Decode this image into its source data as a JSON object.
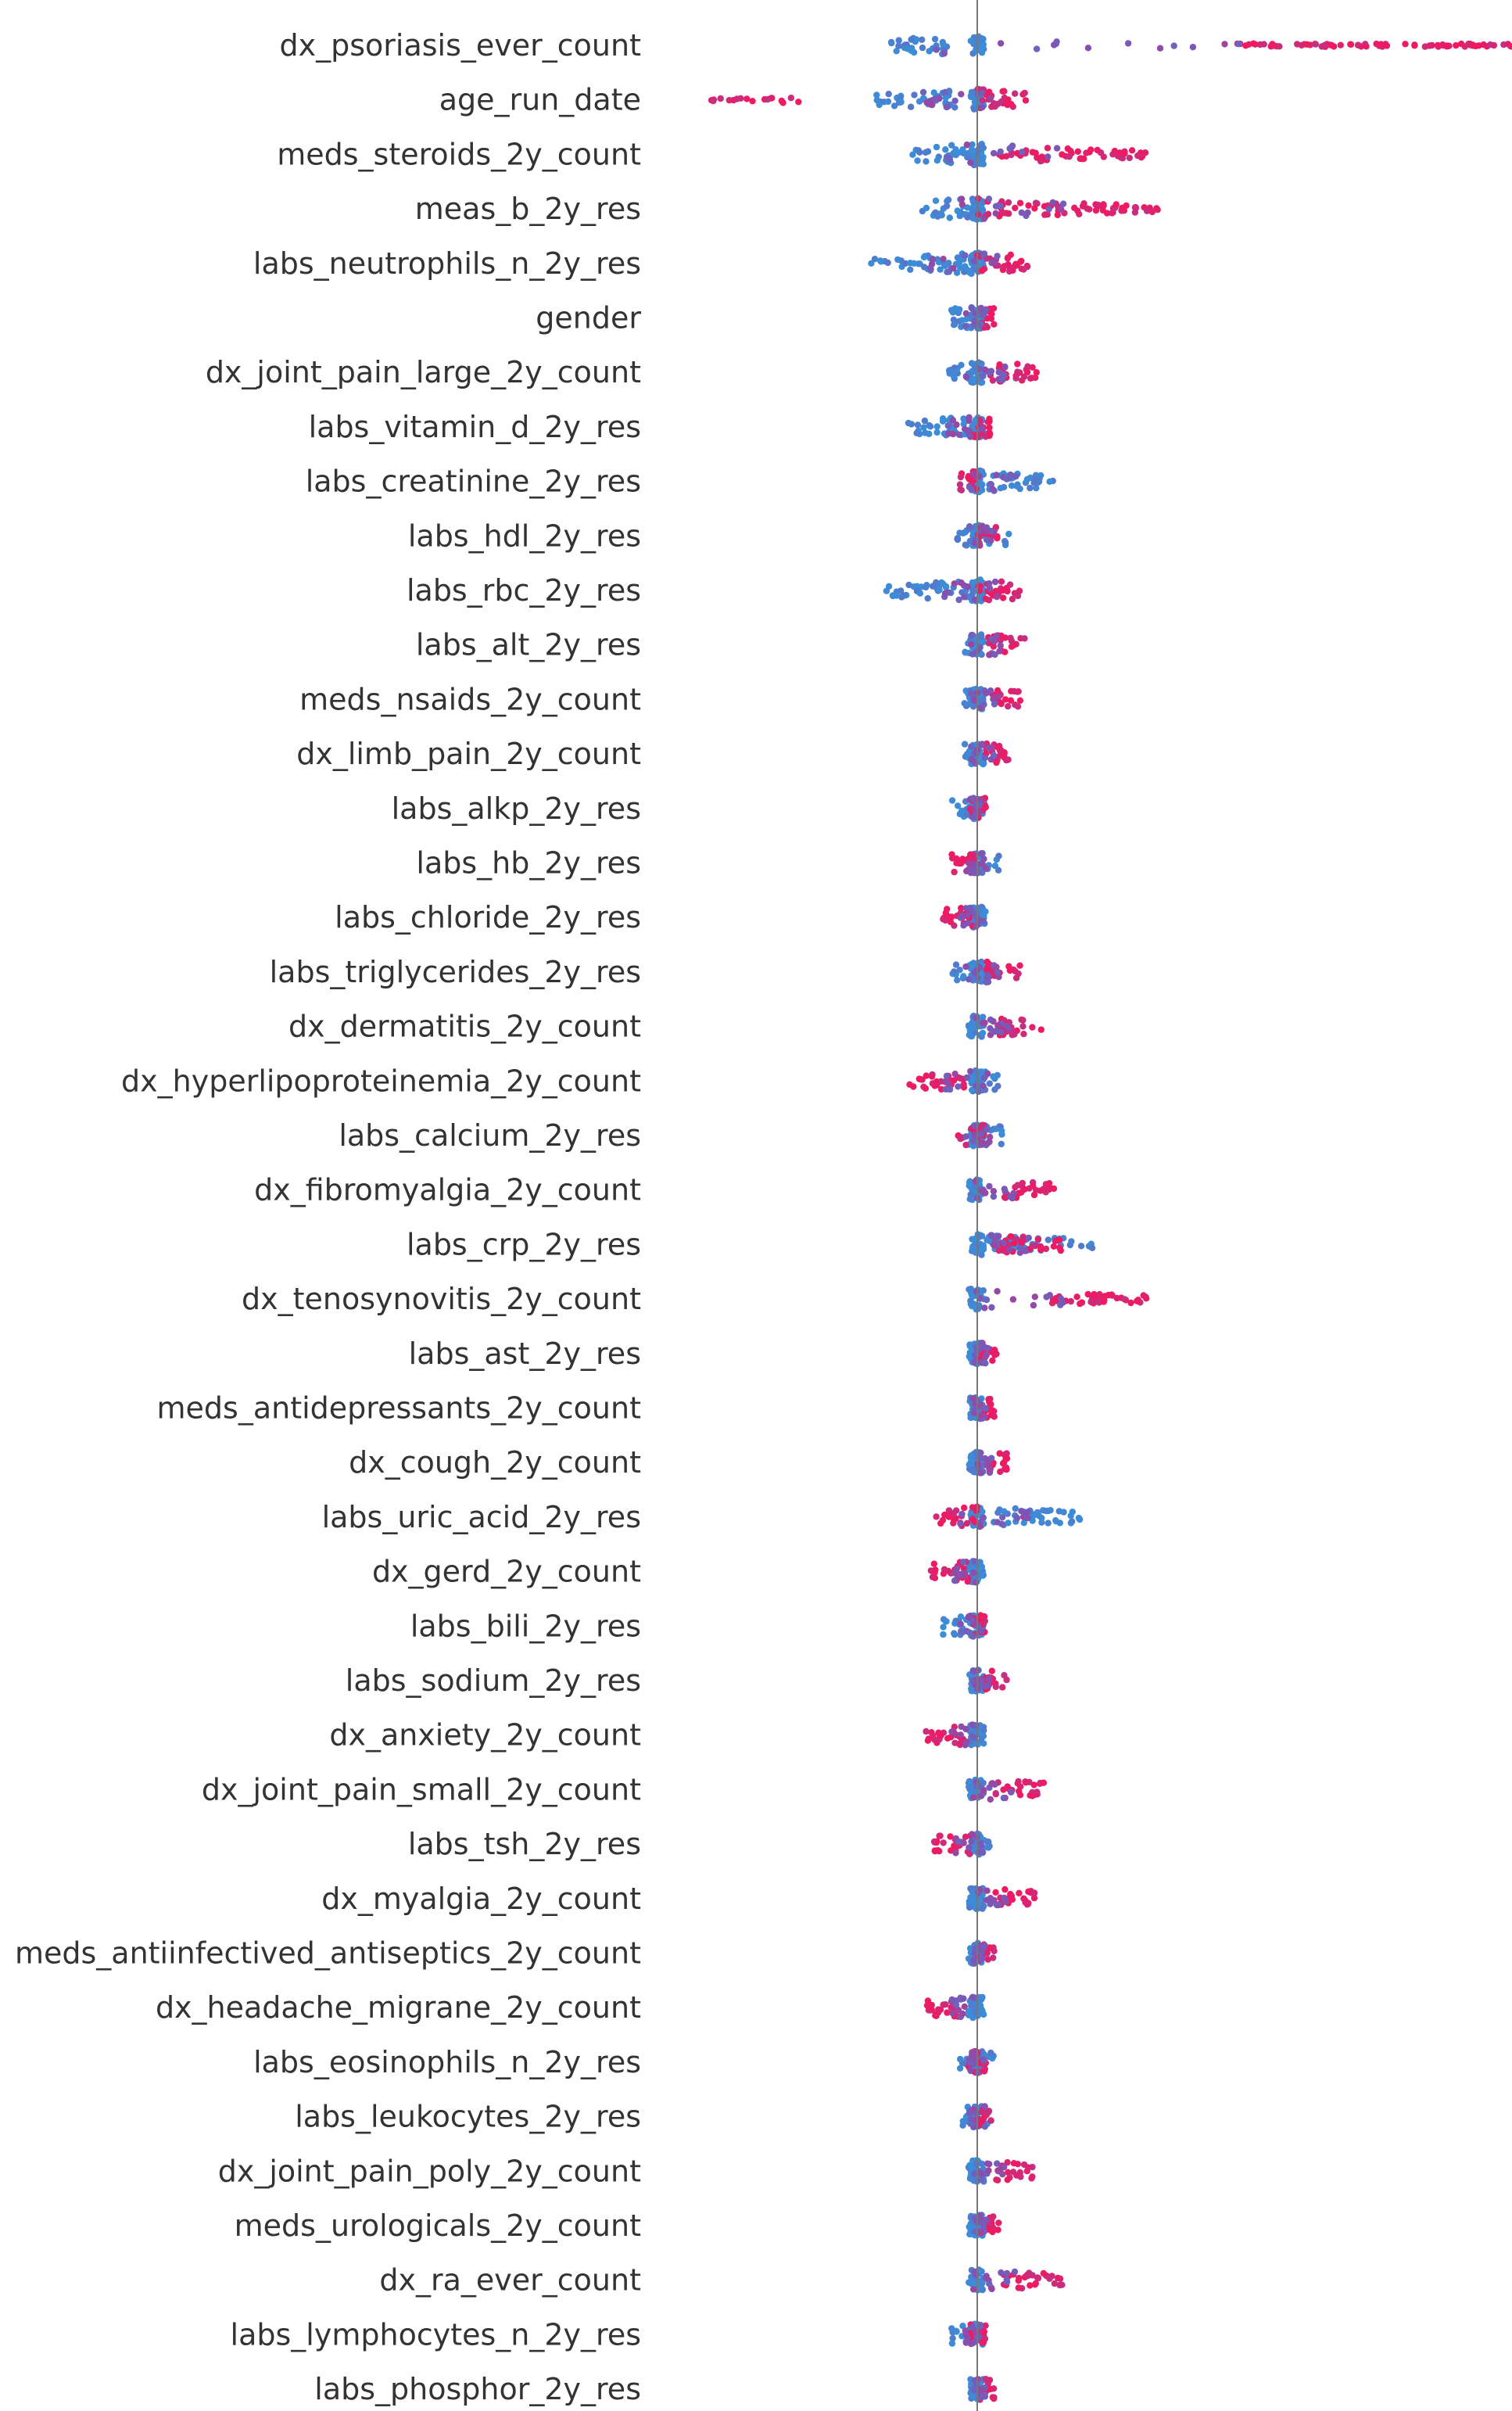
{
  "chart_data": {
    "type": "beeswarm",
    "title": "",
    "xlabel": "",
    "ylabel": "",
    "xlim": [
      -0.6,
      1.3
    ],
    "baseline": 0,
    "grid": false,
    "colors": {
      "low": "#3c8dd8",
      "mid": "#7e55b6",
      "high": "#ee1a62",
      "na": "#888888"
    },
    "features": [
      {
        "name": "dx_psoriasis_ever_count",
        "low_range": [
          -0.2,
          -0.05
        ],
        "high_range": [
          0.6,
          1.3
        ],
        "extra": []
      },
      {
        "name": "age_run_date",
        "low_range": [
          -0.25,
          -0.05
        ],
        "high_range": [
          0.0,
          0.12
        ],
        "extra": [
          {
            "range": [
              -0.62,
              -0.4
            ],
            "tone": "high"
          }
        ]
      },
      {
        "name": "meds_steroids_2y_count",
        "low_range": [
          -0.15,
          0.0
        ],
        "high_range": [
          0.05,
          0.4
        ],
        "extra": []
      },
      {
        "name": "meas_b_2y_res",
        "low_range": [
          -0.13,
          0.0
        ],
        "high_range": [
          0.0,
          0.42
        ],
        "extra": []
      },
      {
        "name": "labs_neutrophils_n_2y_res",
        "low_range": [
          -0.25,
          0.0
        ],
        "high_range": [
          0.0,
          0.13
        ],
        "extra": []
      },
      {
        "name": "gender",
        "low_range": [
          -0.06,
          -0.01
        ],
        "high_range": [
          0.01,
          0.04
        ],
        "extra": []
      },
      {
        "name": "dx_joint_pain_large_2y_count",
        "low_range": [
          -0.07,
          0.0
        ],
        "high_range": [
          0.02,
          0.14
        ],
        "extra": []
      },
      {
        "name": "labs_vitamin_d_2y_res",
        "low_range": [
          -0.16,
          -0.02
        ],
        "high_range": [
          -0.02,
          0.03
        ],
        "extra": []
      },
      {
        "name": "labs_creatinine_2y_res",
        "low_range": [
          0.0,
          0.18
        ],
        "high_range": [
          -0.04,
          0.0
        ],
        "extra": []
      },
      {
        "name": "labs_hdl_2y_res",
        "low_range": [
          -0.05,
          0.08
        ],
        "high_range": [
          0.0,
          0.05
        ],
        "extra": []
      },
      {
        "name": "labs_rbc_2y_res",
        "low_range": [
          -0.22,
          -0.02
        ],
        "high_range": [
          0.0,
          0.1
        ],
        "extra": []
      },
      {
        "name": "labs_alt_2y_res",
        "low_range": [
          -0.03,
          0.01
        ],
        "high_range": [
          0.02,
          0.11
        ],
        "extra": []
      },
      {
        "name": "meds_nsaids_2y_count",
        "low_range": [
          -0.03,
          0.0
        ],
        "high_range": [
          0.03,
          0.1
        ],
        "extra": []
      },
      {
        "name": "dx_limb_pain_2y_count",
        "low_range": [
          -0.03,
          0.0
        ],
        "high_range": [
          0.02,
          0.08
        ],
        "extra": []
      },
      {
        "name": "labs_alkp_2y_res",
        "low_range": [
          -0.06,
          0.02
        ],
        "high_range": [
          -0.02,
          0.02
        ],
        "extra": []
      },
      {
        "name": "labs_hb_2y_res",
        "low_range": [
          -0.02,
          0.05
        ],
        "high_range": [
          -0.06,
          0.0
        ],
        "extra": []
      },
      {
        "name": "labs_chloride_2y_res",
        "low_range": [
          -0.02,
          0.03
        ],
        "high_range": [
          -0.08,
          -0.01
        ],
        "extra": []
      },
      {
        "name": "labs_triglycerides_2y_res",
        "low_range": [
          -0.06,
          0.02
        ],
        "high_range": [
          0.02,
          0.1
        ],
        "extra": []
      },
      {
        "name": "dx_dermatitis_2y_count",
        "low_range": [
          -0.02,
          0.0
        ],
        "high_range": [
          0.05,
          0.15
        ],
        "extra": []
      },
      {
        "name": "dx_hyperlipoproteinemia_2y_count",
        "low_range": [
          -0.02,
          0.05
        ],
        "high_range": [
          -0.16,
          -0.02
        ],
        "extra": []
      },
      {
        "name": "labs_calcium_2y_res",
        "low_range": [
          -0.02,
          0.06
        ],
        "high_range": [
          -0.06,
          0.02
        ],
        "extra": []
      },
      {
        "name": "dx_fibromyalgia_2y_count",
        "low_range": [
          -0.02,
          0.0
        ],
        "high_range": [
          0.06,
          0.18
        ],
        "extra": []
      },
      {
        "name": "labs_crp_2y_res",
        "low_range": [
          0.02,
          0.28
        ],
        "high_range": [
          0.05,
          0.2
        ],
        "extra": []
      },
      {
        "name": "dx_tenosynovitis_2y_count",
        "low_range": [
          -0.02,
          0.0
        ],
        "high_range": [
          0.17,
          0.4
        ],
        "extra": []
      },
      {
        "name": "labs_ast_2y_res",
        "low_range": [
          -0.02,
          0.0
        ],
        "high_range": [
          0.0,
          0.05
        ],
        "extra": []
      },
      {
        "name": "meds_antidepressants_2y_count",
        "low_range": [
          -0.02,
          0.0
        ],
        "high_range": [
          0.01,
          0.04
        ],
        "extra": []
      },
      {
        "name": "dx_cough_2y_count",
        "low_range": [
          -0.02,
          0.0
        ],
        "high_range": [
          0.02,
          0.07
        ],
        "extra": []
      },
      {
        "name": "labs_uric_acid_2y_res",
        "low_range": [
          0.03,
          0.24
        ],
        "high_range": [
          -0.1,
          0.0
        ],
        "extra": []
      },
      {
        "name": "dx_gerd_2y_count",
        "low_range": [
          -0.02,
          0.0
        ],
        "high_range": [
          -0.11,
          -0.02
        ],
        "extra": []
      },
      {
        "name": "labs_bili_2y_res",
        "low_range": [
          -0.08,
          0.0
        ],
        "high_range": [
          -0.01,
          0.02
        ],
        "extra": []
      },
      {
        "name": "labs_sodium_2y_res",
        "low_range": [
          -0.02,
          0.0
        ],
        "high_range": [
          0.01,
          0.07
        ],
        "extra": []
      },
      {
        "name": "dx_anxiety_2y_count",
        "low_range": [
          -0.02,
          0.0
        ],
        "high_range": [
          -0.12,
          -0.02
        ],
        "extra": []
      },
      {
        "name": "dx_joint_pain_small_2y_count",
        "low_range": [
          -0.02,
          0.0
        ],
        "high_range": [
          0.04,
          0.16
        ],
        "extra": []
      },
      {
        "name": "labs_tsh_2y_res",
        "low_range": [
          -0.02,
          0.03
        ],
        "high_range": [
          -0.1,
          -0.01
        ],
        "extra": []
      },
      {
        "name": "dx_myalgia_2y_count",
        "low_range": [
          -0.02,
          0.0
        ],
        "high_range": [
          0.03,
          0.14
        ],
        "extra": []
      },
      {
        "name": "meds_antiinfectived_antiseptics_2y_count",
        "low_range": [
          -0.02,
          0.01
        ],
        "high_range": [
          0.0,
          0.04
        ],
        "extra": []
      },
      {
        "name": "dx_headache_migrane_2y_count",
        "low_range": [
          -0.02,
          0.0
        ],
        "high_range": [
          -0.12,
          -0.02
        ],
        "extra": []
      },
      {
        "name": "labs_eosinophils_n_2y_res",
        "low_range": [
          -0.04,
          0.04
        ],
        "high_range": [
          -0.02,
          0.02
        ],
        "extra": []
      },
      {
        "name": "labs_leukocytes_2y_res",
        "low_range": [
          -0.04,
          0.03
        ],
        "high_range": [
          0.0,
          0.04
        ],
        "extra": []
      },
      {
        "name": "dx_joint_pain_poly_2y_count",
        "low_range": [
          -0.02,
          0.0
        ],
        "high_range": [
          0.04,
          0.13
        ],
        "extra": []
      },
      {
        "name": "meds_urologicals_2y_count",
        "low_range": [
          -0.02,
          0.0
        ],
        "high_range": [
          0.01,
          0.05
        ],
        "extra": []
      },
      {
        "name": "dx_ra_ever_count",
        "low_range": [
          -0.02,
          0.0
        ],
        "high_range": [
          0.06,
          0.2
        ],
        "extra": []
      },
      {
        "name": "labs_lymphocytes_n_2y_res",
        "low_range": [
          -0.06,
          0.0
        ],
        "high_range": [
          -0.02,
          0.02
        ],
        "extra": []
      },
      {
        "name": "labs_phosphor_2y_res",
        "low_range": [
          -0.02,
          0.01
        ],
        "high_range": [
          0.0,
          0.04
        ],
        "extra": []
      }
    ]
  }
}
